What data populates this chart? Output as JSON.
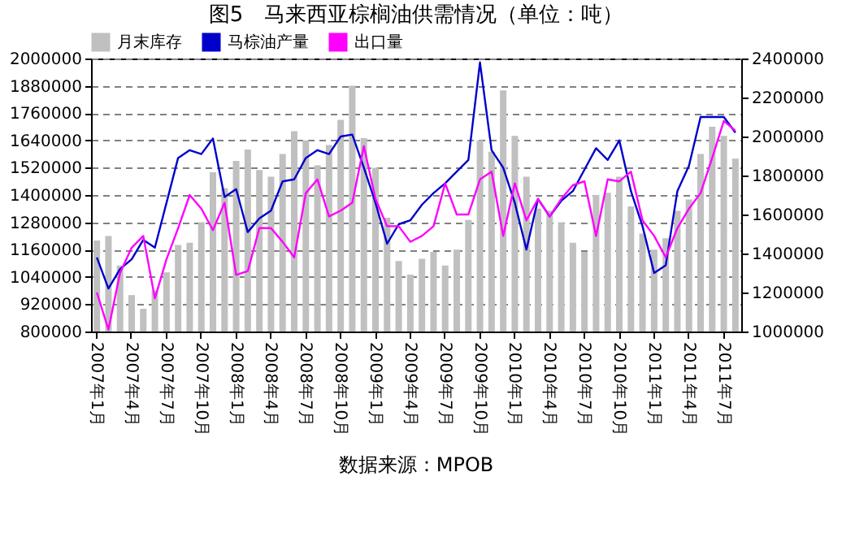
{
  "chart_data": {
    "type": "bar",
    "title": "图5　马来西亚棕榈油供需情况（单位：吨）",
    "categories": [
      "2007年1月",
      null,
      null,
      "2007年4月",
      null,
      null,
      "2007年7月",
      null,
      null,
      "2007年10月",
      null,
      null,
      "2008年1月",
      null,
      null,
      "2008年4月",
      null,
      null,
      "2008年7月",
      null,
      null,
      "2008年10月",
      null,
      null,
      "2009年1月",
      null,
      null,
      "2009年4月",
      null,
      null,
      "2009年7月",
      null,
      null,
      "2009年10月",
      null,
      null,
      "2010年1月",
      null,
      null,
      "2010年4月",
      null,
      null,
      "2010年7月",
      null,
      null,
      "2010年10月",
      null,
      null,
      "2011年1月",
      null,
      null,
      "2011年4月",
      null,
      null,
      "2011年7月",
      null
    ],
    "series": [
      {
        "name": "月末库存",
        "axis": "y",
        "color": "#c0c0c0",
        "values": [
          1200000,
          1220000,
          1090000,
          960000,
          900000,
          980000,
          1060000,
          1180000,
          1190000,
          1280000,
          1500000,
          1430000,
          1550000,
          1600000,
          1510000,
          1480000,
          1580000,
          1680000,
          1640000,
          1530000,
          1620000,
          1730000,
          1880000,
          1650000,
          1520000,
          1300000,
          1110000,
          1050000,
          1120000,
          1150000,
          1090000,
          1160000,
          1290000,
          1640000,
          1590000,
          1860000,
          1660000,
          1480000,
          1340000,
          1330000,
          1280000,
          1190000,
          1150000,
          1400000,
          1410000,
          1480000,
          1350000,
          1230000,
          1160000,
          1210000,
          1330000,
          1380000,
          1580000,
          1700000,
          1660000,
          1560000
        ]
      },
      {
        "name": "马棕油产量",
        "type": "line",
        "axis": "y2",
        "color": "#0000cc",
        "values": [
          1380000,
          1220000,
          1320000,
          1370000,
          1470000,
          1430000,
          1660000,
          1890000,
          1930000,
          1910000,
          1990000,
          1690000,
          1730000,
          1510000,
          1580000,
          1620000,
          1770000,
          1780000,
          1890000,
          1930000,
          1910000,
          2000000,
          2010000,
          1840000,
          1660000,
          1450000,
          1550000,
          1570000,
          1650000,
          1710000,
          1760000,
          1820000,
          1880000,
          2380000,
          1930000,
          1840000,
          1660000,
          1420000,
          1680000,
          1590000,
          1670000,
          1720000,
          1830000,
          1940000,
          1880000,
          1980000,
          1720000,
          1540000,
          1300000,
          1340000,
          1720000,
          1850000,
          2100000,
          2100000,
          2100000,
          2020000
        ]
      },
      {
        "name": "出口量",
        "type": "line",
        "axis": "y2",
        "color": "#ff00ff",
        "values": [
          1200000,
          1010000,
          1300000,
          1430000,
          1490000,
          1170000,
          1370000,
          1530000,
          1700000,
          1630000,
          1520000,
          1660000,
          1290000,
          1310000,
          1530000,
          1530000,
          1460000,
          1380000,
          1710000,
          1780000,
          1590000,
          1620000,
          1660000,
          1950000,
          1680000,
          1540000,
          1540000,
          1460000,
          1490000,
          1540000,
          1760000,
          1600000,
          1600000,
          1780000,
          1820000,
          1490000,
          1760000,
          1570000,
          1680000,
          1590000,
          1680000,
          1750000,
          1770000,
          1490000,
          1780000,
          1770000,
          1820000,
          1570000,
          1490000,
          1380000,
          1530000,
          1630000,
          1710000,
          1890000,
          2080000,
          2030000
        ]
      }
    ],
    "ylim": [
      800000,
      2000000
    ],
    "yticks": [
      800000,
      920000,
      1040000,
      1160000,
      1280000,
      1400000,
      1520000,
      1640000,
      1760000,
      1880000,
      2000000
    ],
    "y2lim": [
      1000000,
      2400000
    ],
    "y2ticks": [
      1000000,
      1200000,
      1400000,
      1600000,
      1800000,
      2000000,
      2200000,
      2400000
    ],
    "grid": "y",
    "legend": "top",
    "line_style": "solid",
    "marker": "none",
    "annotations": [
      "数据来源：MPOB"
    ]
  }
}
